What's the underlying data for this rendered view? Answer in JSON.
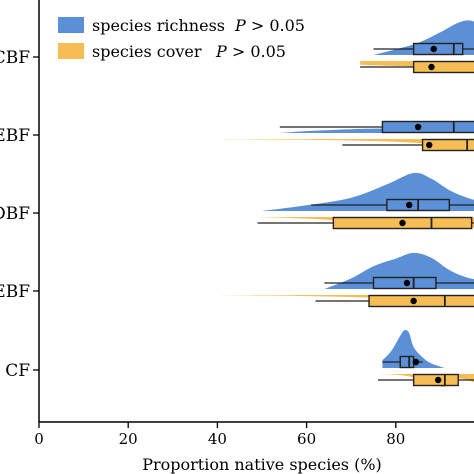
{
  "chart_data": {
    "type": "raincloud",
    "orientation": "horizontal",
    "xlabel": "Proportion native species (%)",
    "ylabel": "",
    "xlim": [
      0,
      100
    ],
    "xticks": [
      0,
      20,
      40,
      60,
      80
    ],
    "categories": [
      "CF",
      "EBF",
      "DBF",
      "EBF",
      "CBF"
    ],
    "category_labels_visible": [
      "CF",
      "EBF",
      "DBF",
      "EBF",
      "CBF"
    ],
    "legend": {
      "placement": "top-left",
      "entries": [
        {
          "series": "species richness",
          "p_text": "P > 0.05"
        },
        {
          "series": "species cover",
          "p_text": "P > 0.05"
        }
      ]
    },
    "colors": {
      "richness": "#5b8fd6",
      "cover": "#f7bd55",
      "box_stroke": "#222222"
    },
    "series": [
      {
        "name": "species richness",
        "stats": [
          {
            "category": "CF",
            "whisker_low": 77,
            "q1": 81,
            "median": 83,
            "q3": 84,
            "whisker_high": 86,
            "mean": 84.5
          },
          {
            "category": "EBF",
            "whisker_low": 64,
            "q1": 75,
            "median": 84,
            "q3": 89,
            "whisker_high": 100,
            "mean": 82.5
          },
          {
            "category": "DBF",
            "whisker_low": 61,
            "q1": 78,
            "median": 85,
            "q3": 92,
            "whisker_high": 100,
            "mean": 83
          },
          {
            "category": "EBF",
            "whisker_low": 54,
            "q1": 77,
            "median": 93,
            "q3": 100,
            "whisker_high": 100,
            "mean": 85
          },
          {
            "category": "CBF",
            "whisker_low": 75,
            "q1": 84,
            "median": 93,
            "q3": 95,
            "whisker_high": 100,
            "mean": 88.5
          }
        ],
        "density": [
          {
            "category": "CF",
            "x": [
              77,
              79,
              81,
              82,
              83,
              84,
              86,
              88,
              91
            ],
            "h": [
              0.2,
              0.45,
              0.85,
              1.0,
              0.92,
              0.55,
              0.28,
              0.12,
              0.0
            ]
          },
          {
            "category": "EBF",
            "x": [
              64,
              70,
              75,
              80,
              84,
              88,
              92,
              96,
              100
            ],
            "h": [
              0.0,
              0.28,
              0.6,
              0.8,
              0.95,
              0.82,
              0.5,
              0.3,
              0.22
            ]
          },
          {
            "category": "DBF",
            "x": [
              50,
              60,
              70,
              78,
              84,
              88,
              92,
              96,
              100
            ],
            "h": [
              0.0,
              0.15,
              0.35,
              0.7,
              1.0,
              0.85,
              0.55,
              0.35,
              0.22
            ]
          },
          {
            "category": "EBF",
            "x": [
              54,
              60,
              70,
              78,
              86,
              92,
              96,
              100
            ],
            "h": [
              0.0,
              0.05,
              0.1,
              0.12,
              0.14,
              0.18,
              0.12,
              0.08
            ]
          },
          {
            "category": "CBF",
            "x": [
              75,
              80,
              85,
              90,
              94,
              97,
              100
            ],
            "h": [
              0.0,
              0.15,
              0.32,
              0.6,
              0.85,
              0.9,
              0.7
            ]
          }
        ]
      },
      {
        "name": "species cover",
        "stats": [
          {
            "category": "CF",
            "whisker_low": 76,
            "q1": 84,
            "median": 91,
            "q3": 94,
            "whisker_high": 100,
            "mean": 89.5
          },
          {
            "category": "EBF",
            "whisker_low": 62,
            "q1": 74,
            "median": 91,
            "q3": 98,
            "whisker_high": 100,
            "mean": 84
          },
          {
            "category": "DBF",
            "whisker_low": 49,
            "q1": 66,
            "median": 88,
            "q3": 97,
            "whisker_high": 100,
            "mean": 81.5
          },
          {
            "category": "EBF",
            "whisker_low": 68,
            "q1": 86,
            "median": 96,
            "q3": 100,
            "whisker_high": 100,
            "mean": 87.5
          },
          {
            "category": "CBF",
            "whisker_low": 72,
            "q1": 84,
            "median": 98,
            "q3": 100,
            "whisker_high": 100,
            "mean": 88
          }
        ],
        "density": [
          {
            "category": "CF",
            "x": [
              76,
              80,
              84,
              88,
              91,
              94,
              97,
              100
            ],
            "h": [
              0.0,
              0.05,
              0.25,
              0.7,
              0.95,
              0.35,
              0.55,
              0.85
            ]
          },
          {
            "category": "EBF",
            "x": [
              37,
              50,
              60,
              70,
              80,
              88,
              93,
              97,
              100
            ],
            "h": [
              0.0,
              0.04,
              0.08,
              0.15,
              0.28,
              0.5,
              0.7,
              0.65,
              0.5
            ]
          },
          {
            "category": "DBF",
            "x": [
              49,
              60,
              70,
              78,
              84,
              90,
              95,
              100
            ],
            "h": [
              0.0,
              0.12,
              0.3,
              0.45,
              0.58,
              0.7,
              0.8,
              0.75
            ]
          },
          {
            "category": "EBF",
            "x": [
              34,
              45,
              55,
              65,
              75,
              85,
              92,
              97,
              100
            ],
            "h": [
              0.0,
              0.02,
              0.04,
              0.08,
              0.15,
              0.3,
              0.55,
              0.7,
              0.6
            ]
          },
          {
            "category": "CBF",
            "x": [
              72,
              78,
              84,
              88,
              92,
              96,
              100
            ],
            "h": [
              0.28,
              0.35,
              0.4,
              0.45,
              0.55,
              0.5,
              0.42
            ]
          }
        ]
      }
    ]
  }
}
